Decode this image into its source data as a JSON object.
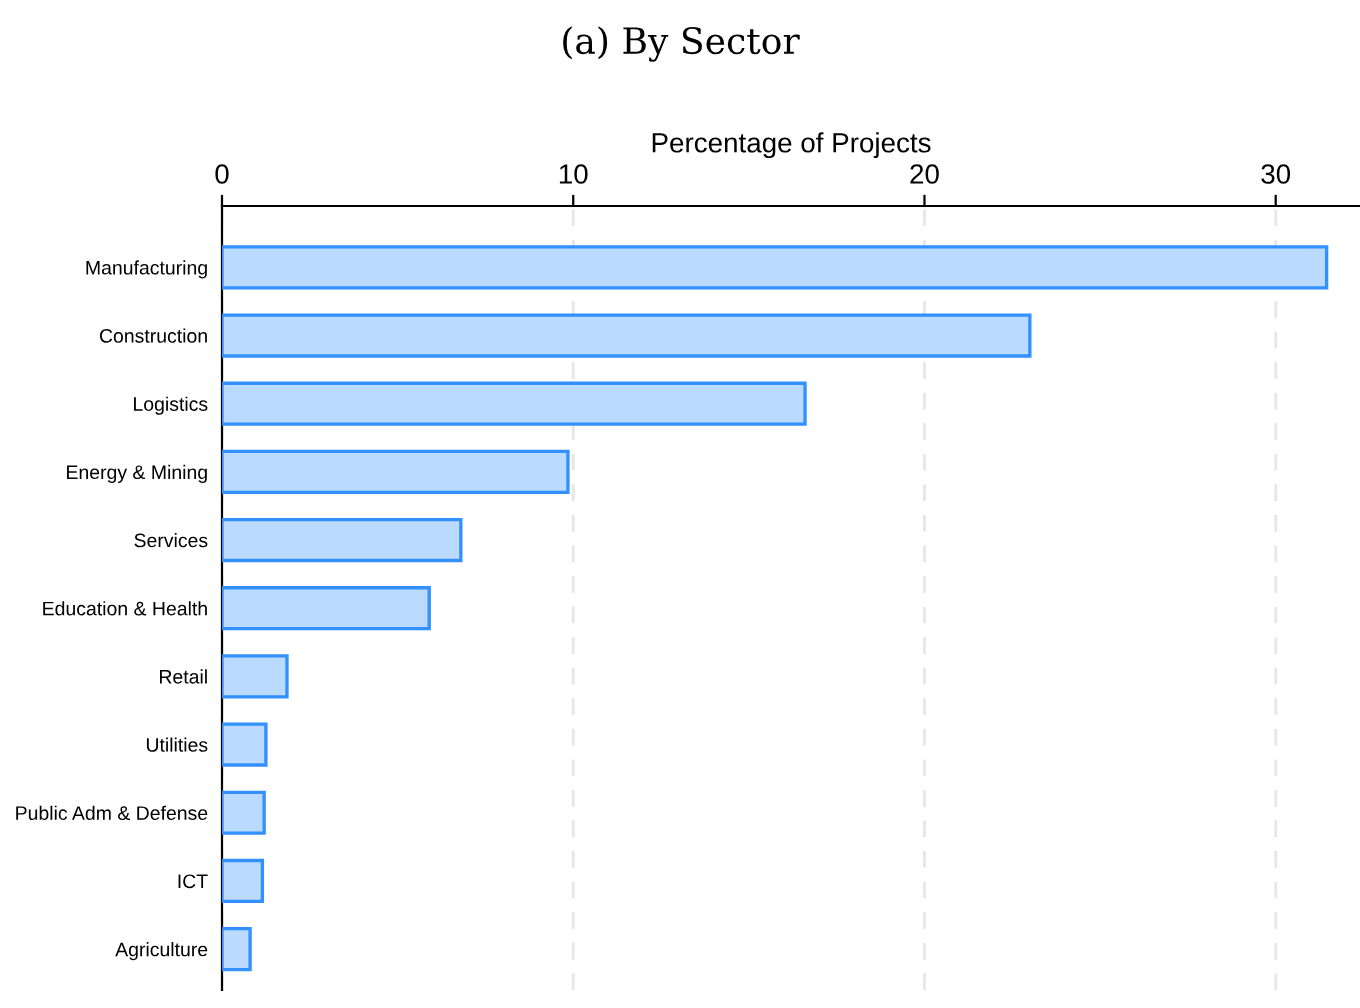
{
  "chart_data": {
    "type": "bar",
    "orientation": "horizontal",
    "title": "(a) By Sector",
    "xlabel": "Percentage of Projects",
    "categories": [
      "Manufacturing",
      "Construction",
      "Logistics",
      "Energy & Mining",
      "Services",
      "Education & Health",
      "Retail",
      "Utilities",
      "Public Adm & Defense",
      "ICT",
      "Agriculture"
    ],
    "values": [
      31.45,
      23.0,
      16.6,
      9.85,
      6.8,
      5.9,
      1.85,
      1.25,
      1.2,
      1.15,
      0.8
    ],
    "color": "#bbdaff",
    "xlim": [
      0,
      32.4
    ],
    "xticks": [
      0,
      10,
      20,
      30
    ],
    "grid": "x"
  }
}
